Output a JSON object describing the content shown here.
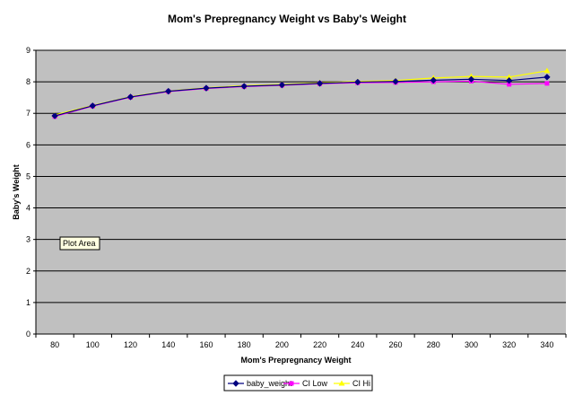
{
  "chart_data": {
    "type": "line",
    "title": "Mom's Prepregnancy Weight vs Baby's Weight",
    "xlabel": "Mom's Prepregnancy Weight",
    "ylabel": "Baby's Weight",
    "x": [
      80,
      100,
      120,
      140,
      160,
      180,
      200,
      220,
      240,
      260,
      280,
      300,
      320,
      340
    ],
    "x_ticks": [
      "80",
      "100",
      "120",
      "140",
      "160",
      "180",
      "200",
      "220",
      "240",
      "260",
      "280",
      "300",
      "320",
      "340"
    ],
    "ylim": [
      0,
      9
    ],
    "y_ticks": [
      "0",
      "1",
      "2",
      "3",
      "4",
      "5",
      "6",
      "7",
      "8",
      "9"
    ],
    "grid": true,
    "legend_position": "bottom",
    "series": [
      {
        "name": "baby_weight",
        "color": "#000080",
        "marker": "diamond",
        "values": [
          6.92,
          7.24,
          7.52,
          7.7,
          7.8,
          7.86,
          7.9,
          7.95,
          7.99,
          8.01,
          8.05,
          8.08,
          8.04,
          8.15
        ]
      },
      {
        "name": "CI Low",
        "color": "#ff00ff",
        "marker": "square",
        "values": [
          6.9,
          7.23,
          7.51,
          7.69,
          7.79,
          7.85,
          7.89,
          7.94,
          7.97,
          7.98,
          8.0,
          8.02,
          7.92,
          7.95
        ]
      },
      {
        "name": "CI Hi",
        "color": "#ffff00",
        "marker": "triangle",
        "values": [
          6.95,
          7.25,
          7.53,
          7.71,
          7.81,
          7.88,
          7.92,
          7.97,
          8.01,
          8.04,
          8.12,
          8.17,
          8.15,
          8.35
        ]
      }
    ],
    "plot_area_tooltip": "Plot Area"
  }
}
